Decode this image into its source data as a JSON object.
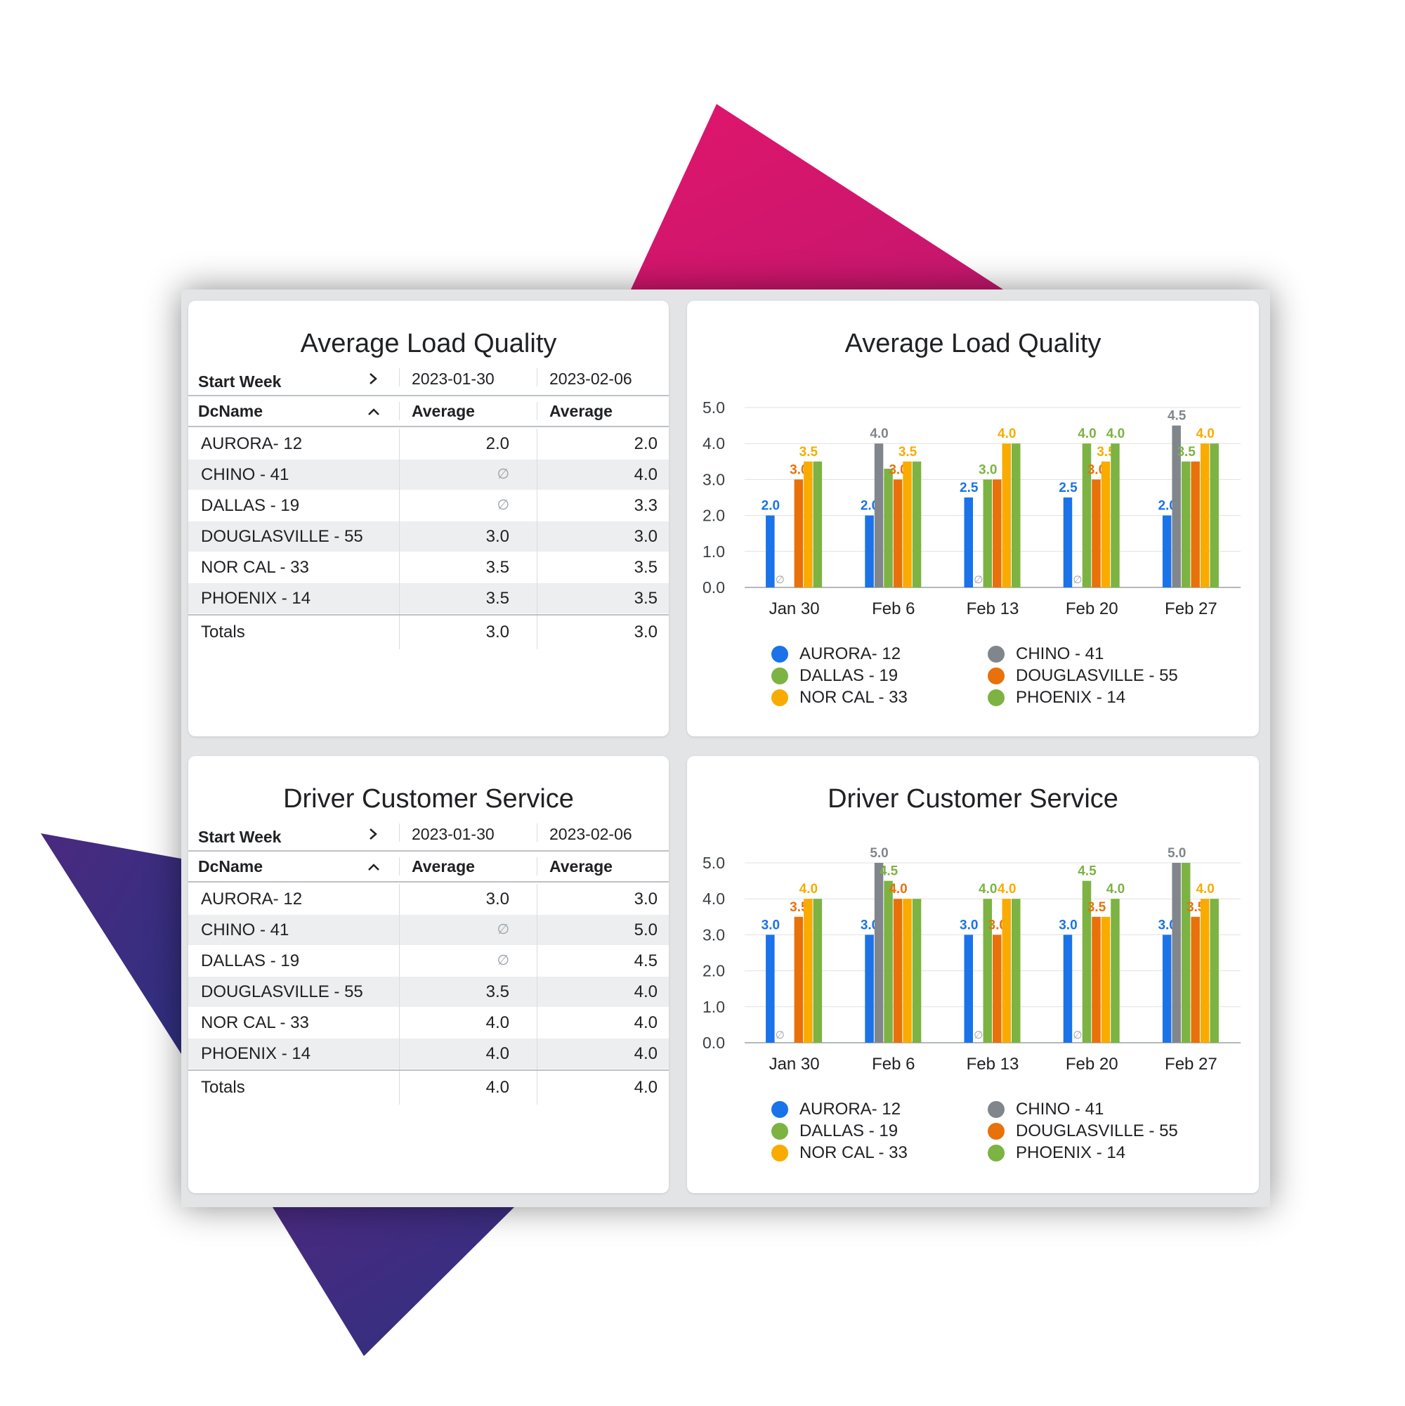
{
  "colors": {
    "AURORA- 12": "#1a73e8",
    "CHINO - 41": "#80868b",
    "DALLAS - 19": "#7cb342",
    "DOUGLASVILLE - 55": "#e8710a",
    "NOR CAL - 33": "#f9ab00",
    "PHOENIX - 14": "#7cb342",
    "axis_text": "#3c4043",
    "grid": "#e0e0e0",
    "pink": "#e0156c",
    "purple": "#3a2a7a"
  },
  "tables": [
    {
      "title": "Average Load Quality",
      "header": {
        "dim_label": "Start Week",
        "week_icon": "chevron-right-icon",
        "week1": "2023-01-30",
        "week2": "2023-02-06"
      },
      "subheader": {
        "dim_label": "DcName",
        "sort_icon": "chevron-up-icon",
        "metric1": "Average",
        "metric2": "Average"
      },
      "rows": [
        {
          "name": "AURORA- 12",
          "v1": "2.0",
          "v2": "2.0"
        },
        {
          "name": "CHINO - 41",
          "v1": "∅",
          "v2": "4.0"
        },
        {
          "name": "DALLAS - 19",
          "v1": "∅",
          "v2": "3.3"
        },
        {
          "name": "DOUGLASVILLE - 55",
          "v1": "3.0",
          "v2": "3.0"
        },
        {
          "name": "NOR CAL - 33",
          "v1": "3.5",
          "v2": "3.5"
        },
        {
          "name": "PHOENIX - 14",
          "v1": "3.5",
          "v2": "3.5"
        }
      ],
      "totals": {
        "label": "Totals",
        "v1": "3.0",
        "v2": "3.0"
      }
    },
    {
      "title": "Driver Customer Service",
      "header": {
        "dim_label": "Start Week",
        "week_icon": "chevron-right-icon",
        "week1": "2023-01-30",
        "week2": "2023-02-06"
      },
      "subheader": {
        "dim_label": "DcName",
        "sort_icon": "chevron-up-icon",
        "metric1": "Average",
        "metric2": "Average"
      },
      "rows": [
        {
          "name": "AURORA- 12",
          "v1": "3.0",
          "v2": "3.0"
        },
        {
          "name": "CHINO - 41",
          "v1": "∅",
          "v2": "5.0"
        },
        {
          "name": "DALLAS - 19",
          "v1": "∅",
          "v2": "4.5"
        },
        {
          "name": "DOUGLASVILLE - 55",
          "v1": "3.5",
          "v2": "4.0"
        },
        {
          "name": "NOR CAL - 33",
          "v1": "4.0",
          "v2": "4.0"
        },
        {
          "name": "PHOENIX - 14",
          "v1": "4.0",
          "v2": "4.0"
        }
      ],
      "totals": {
        "label": "Totals",
        "v1": "4.0",
        "v2": "4.0"
      }
    }
  ],
  "chart_data": [
    {
      "type": "bar",
      "title": "Average Load Quality",
      "categories": [
        "Jan 30",
        "Feb 6",
        "Feb 13",
        "Feb 20",
        "Feb 27"
      ],
      "ylim": [
        0,
        5
      ],
      "yticks": [
        "0.0",
        "1.0",
        "2.0",
        "3.0",
        "4.0",
        "5.0"
      ],
      "grid": true,
      "legend_position": "bottom",
      "null_marker": "∅",
      "series": [
        {
          "name": "AURORA- 12",
          "values": [
            2.0,
            2.0,
            2.5,
            2.5,
            2.0
          ],
          "labels": [
            "2.0",
            "2.0",
            "2.5",
            "2.5",
            "2.0"
          ]
        },
        {
          "name": "CHINO - 41",
          "values": [
            null,
            4.0,
            null,
            null,
            4.5
          ],
          "labels": [
            "",
            "4.0",
            "",
            "",
            "4.5"
          ]
        },
        {
          "name": "DALLAS - 19",
          "values": [
            null,
            3.3,
            3.0,
            4.0,
            3.5
          ],
          "labels": [
            "",
            "",
            "3.0",
            "4.0",
            "3.5"
          ]
        },
        {
          "name": "DOUGLASVILLE - 55",
          "values": [
            3.0,
            3.0,
            3.0,
            3.0,
            3.5
          ],
          "labels": [
            "3.0",
            "3.0",
            "",
            "3.0",
            ""
          ]
        },
        {
          "name": "NOR CAL - 33",
          "values": [
            3.5,
            3.5,
            4.0,
            3.5,
            4.0
          ],
          "labels": [
            "3.5",
            "3.5",
            "4.0",
            "3.5",
            "4.0"
          ]
        },
        {
          "name": "PHOENIX - 14",
          "values": [
            3.5,
            3.5,
            4.0,
            4.0,
            4.0
          ],
          "labels": [
            "",
            "",
            "",
            "4.0",
            ""
          ]
        }
      ]
    },
    {
      "type": "bar",
      "title": "Driver Customer Service",
      "categories": [
        "Jan 30",
        "Feb 6",
        "Feb 13",
        "Feb 20",
        "Feb 27"
      ],
      "ylim": [
        0,
        5
      ],
      "yticks": [
        "0.0",
        "1.0",
        "2.0",
        "3.0",
        "4.0",
        "5.0"
      ],
      "grid": true,
      "legend_position": "bottom",
      "null_marker": "∅",
      "series": [
        {
          "name": "AURORA- 12",
          "values": [
            3.0,
            3.0,
            3.0,
            3.0,
            3.0
          ],
          "labels": [
            "3.0",
            "3.0",
            "3.0",
            "3.0",
            "3.0"
          ]
        },
        {
          "name": "CHINO - 41",
          "values": [
            null,
            5.0,
            null,
            null,
            5.0
          ],
          "labels": [
            "",
            "5.0",
            "",
            "",
            "5.0"
          ]
        },
        {
          "name": "DALLAS - 19",
          "values": [
            null,
            4.5,
            4.0,
            4.5,
            5.0
          ],
          "labels": [
            "",
            "4.5",
            "4.0",
            "4.5",
            ""
          ]
        },
        {
          "name": "DOUGLASVILLE - 55",
          "values": [
            3.5,
            4.0,
            3.0,
            3.5,
            3.5
          ],
          "labels": [
            "3.5",
            "4.0",
            "3.0",
            "3.5",
            "3.5"
          ]
        },
        {
          "name": "NOR CAL - 33",
          "values": [
            4.0,
            4.0,
            4.0,
            3.5,
            4.0
          ],
          "labels": [
            "4.0",
            "",
            "4.0",
            "",
            "4.0"
          ]
        },
        {
          "name": "PHOENIX - 14",
          "values": [
            4.0,
            4.0,
            4.0,
            4.0,
            4.0
          ],
          "labels": [
            "",
            "",
            "",
            "4.0",
            ""
          ]
        }
      ]
    }
  ]
}
